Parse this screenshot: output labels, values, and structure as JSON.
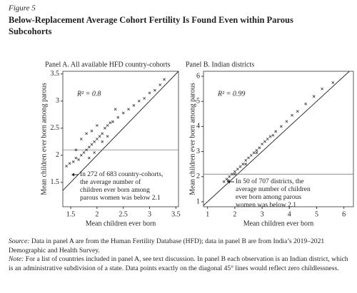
{
  "figure": {
    "label": "Figure 5",
    "title": [
      "Below-Replacement Average Cohort Fertility Is Found Even within Parous",
      "Subcohorts"
    ]
  },
  "chart_data": [
    {
      "type": "scatter",
      "title": "Panel A. All available HFD country-cohorts",
      "xlabel": "Mean children ever born",
      "ylabel": "Mean children ever born among parous",
      "r_squared": "R² = 0.8",
      "annotation": [
        "In 272 of 683 country-cohorts,",
        "the average number of",
        "children ever born among",
        "parous women was below 2.1"
      ],
      "reference_line": 2.1,
      "diagonal": true,
      "color": "#333333",
      "xlim": [
        1.35,
        3.55
      ],
      "ylim": [
        1.05,
        3.55
      ],
      "xticks": [
        1.5,
        2,
        2.5,
        3,
        3.5
      ],
      "yticks": [
        1.5,
        2,
        2.5,
        3,
        3.5
      ],
      "x": [
        1.42,
        1.48,
        1.55,
        1.6,
        1.65,
        1.7,
        1.75,
        1.8,
        1.85,
        1.9,
        1.95,
        2.0,
        2.05,
        2.1,
        2.15,
        2.2,
        2.25,
        2.3,
        2.4,
        2.5,
        2.6,
        2.7,
        2.8,
        2.9,
        3.0,
        3.1,
        3.2,
        3.28,
        1.7,
        1.8,
        1.9,
        2.0,
        1.85,
        1.95,
        2.1,
        2.2,
        1.6,
        2.35
      ],
      "values": [
        1.8,
        1.85,
        1.88,
        1.95,
        1.92,
        2.0,
        2.05,
        2.1,
        2.15,
        2.2,
        2.25,
        2.3,
        2.35,
        2.4,
        2.5,
        2.55,
        2.6,
        2.62,
        2.7,
        2.78,
        2.85,
        2.92,
        3.0,
        3.05,
        3.15,
        3.2,
        3.3,
        3.4,
        2.3,
        2.4,
        2.45,
        2.55,
        1.95,
        2.05,
        2.25,
        2.35,
        2.1,
        2.85
      ]
    },
    {
      "type": "scatter",
      "title": "Panel B. Indian districts",
      "xlabel": "Mean children ever born",
      "ylabel": "Mean children ever born among parous",
      "r_squared": "R² = 0.99",
      "annotation": [
        "In 50 of 707 districts, the",
        "average number of children",
        "ever born among parous",
        "women was below 2.1"
      ],
      "reference_line": 2.1,
      "diagonal": true,
      "color": "#333333",
      "xlim": [
        0.85,
        6.35
      ],
      "ylim": [
        0.8,
        6.2
      ],
      "xticks": [
        1,
        2,
        3,
        4,
        5,
        6
      ],
      "yticks": [
        1,
        2,
        3,
        4,
        5,
        6
      ],
      "x": [
        1.6,
        1.7,
        1.8,
        1.9,
        2.0,
        2.1,
        2.2,
        2.3,
        2.4,
        2.5,
        2.6,
        2.7,
        2.8,
        2.9,
        3.0,
        3.1,
        3.2,
        3.3,
        3.5,
        3.7,
        3.9,
        4.1,
        4.3,
        4.6,
        4.9,
        5.2,
        5.6,
        2.0,
        2.4,
        2.8,
        3.4,
        1.75
      ],
      "values": [
        1.8,
        1.9,
        2.0,
        2.1,
        2.2,
        2.3,
        2.4,
        2.5,
        2.65,
        2.75,
        2.85,
        2.95,
        3.05,
        3.15,
        3.3,
        3.4,
        3.5,
        3.6,
        3.8,
        4.0,
        4.2,
        4.45,
        4.6,
        4.9,
        5.2,
        5.5,
        5.75,
        2.1,
        2.5,
        2.95,
        3.65,
        1.85
      ]
    }
  ],
  "notes": {
    "source_label": "Source:",
    "source_text": "Data in panel A are from the Human Fertility Database (HFD); data in panel B are from India’s 2019–2021 Demographic and Health Survey.",
    "note_label": "Note:",
    "note_text": "For a list of countries included in panel A, see text discussion. In panel B each observation is an Indian district, which is an administrative subdivision of a state. Data points exactly on the diagonal 45° lines would reflect zero childlessness."
  }
}
